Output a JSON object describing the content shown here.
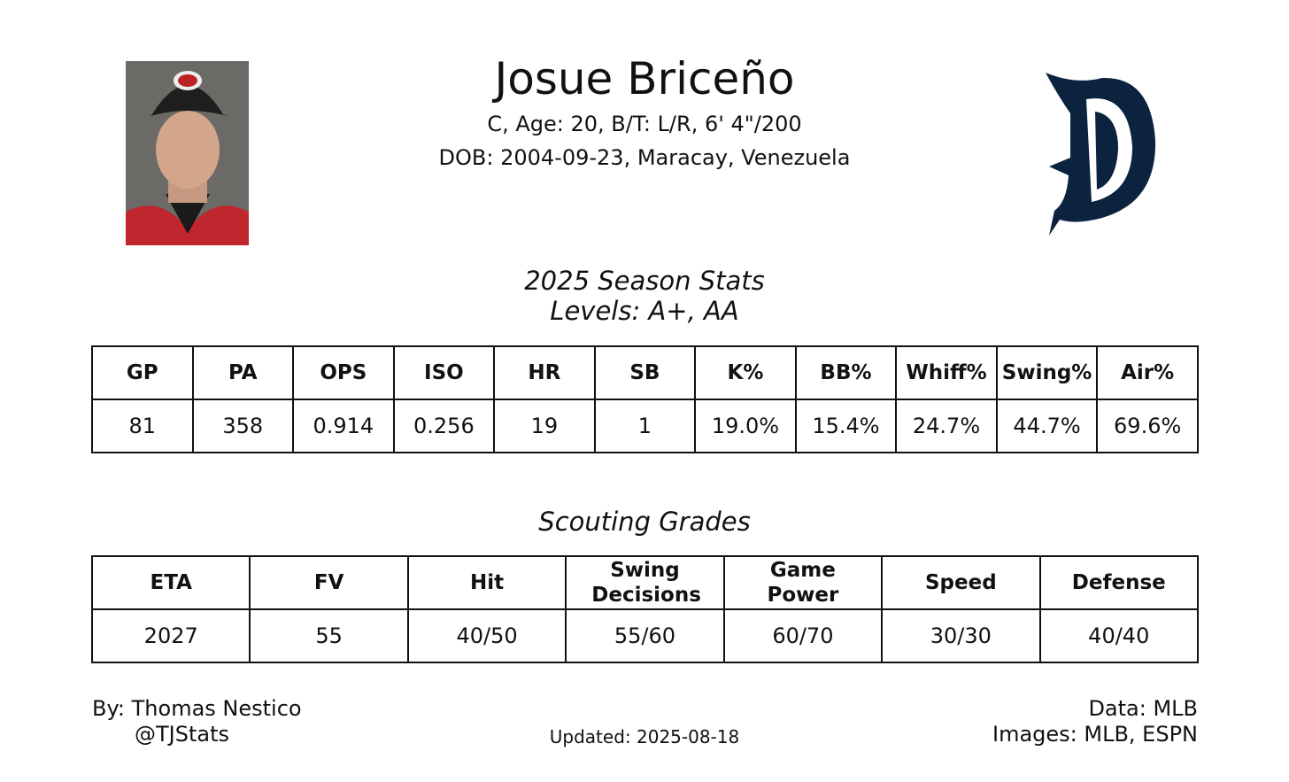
{
  "header": {
    "name": "Josue Briceño",
    "bio_line": "C, Age: 20, B/T: L/R, 6' 4\"/200",
    "dob_line": "DOB: 2004-09-23, Maracay, Venezuela"
  },
  "season_stats": {
    "title": "2025 Season Stats",
    "subtitle": "Levels: A+, AA",
    "headers": [
      "GP",
      "PA",
      "OPS",
      "ISO",
      "HR",
      "SB",
      "K%",
      "BB%",
      "Whiff%",
      "Swing%",
      "Air%"
    ],
    "values": [
      "81",
      "358",
      "0.914",
      "0.256",
      "19",
      "1",
      "19.0%",
      "15.4%",
      "24.7%",
      "44.7%",
      "69.6%"
    ]
  },
  "scouting": {
    "title": "Scouting Grades",
    "headers": [
      "ETA",
      "FV",
      "Hit",
      "Swing Decisions",
      "Game Power",
      "Speed",
      "Defense"
    ],
    "values": [
      "2027",
      "55",
      "40/50",
      "55/60",
      "60/70",
      "30/30",
      "40/40"
    ]
  },
  "footer": {
    "author": "By: Thomas Nestico",
    "handle": "@TJStats",
    "updated": "Updated: 2025-08-18",
    "data_source": "Data: MLB",
    "images_source": "Images: MLB, ESPN"
  }
}
